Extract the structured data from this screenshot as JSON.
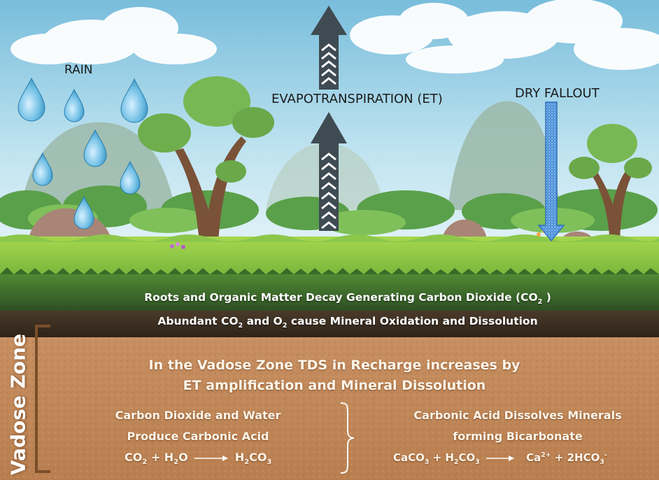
{
  "colors": {
    "sky_top": "#7fc0dd",
    "sky_bottom": "#d9eef6",
    "grass": "#7fc342",
    "dark_grass": "#3f6a2c",
    "soil": "#c38a58",
    "arrow": "#3f4b52",
    "dry_fallout": "#4a90d9",
    "drop": "#5fb2dc"
  },
  "labels": {
    "rain": "RAIN",
    "evapotranspiration": "EVAPOTRANSPIRATION (ET)",
    "dry_fallout": "DRY FALLOUT",
    "vadose_zone": "Vadose Zone"
  },
  "surface": {
    "line1_pre": "Roots and Organic Matter Decay Generating Carbon Dioxide (CO",
    "line1_sub": "2",
    "line1_post": " )",
    "line2_a": "Abundant CO",
    "line2_sub1": "2",
    "line2_b": " and  O",
    "line2_sub2": "2",
    "line2_c": " cause Mineral Oxidation and Dissolution"
  },
  "soil": {
    "heading_1": "In the Vadose Zone TDS in Recharge increases by",
    "heading_2": "ET amplification and Mineral Dissolution",
    "left_1": "Carbon Dioxide and Water",
    "left_2": "Produce Carbonic Acid",
    "right_1": "Carbonic Acid Dissolves Minerals",
    "right_2": "forming Bicarbonate"
  },
  "equations": {
    "left": {
      "a": "CO",
      "a_sub": "2",
      "b": " + H",
      "b_sub": "2",
      "c": "O",
      "d": "H",
      "d_sub": "2",
      "e": "CO",
      "e_sub": "3"
    },
    "right": {
      "a": "CaCO",
      "a_sub": "3",
      "b": " + H",
      "b_sub": "2",
      "c": "CO",
      "c_sub": "3",
      "d": "Ca",
      "d_sup": "2+",
      "e": " + 2HCO",
      "e_sub": "3",
      "e_sup": "-"
    }
  }
}
